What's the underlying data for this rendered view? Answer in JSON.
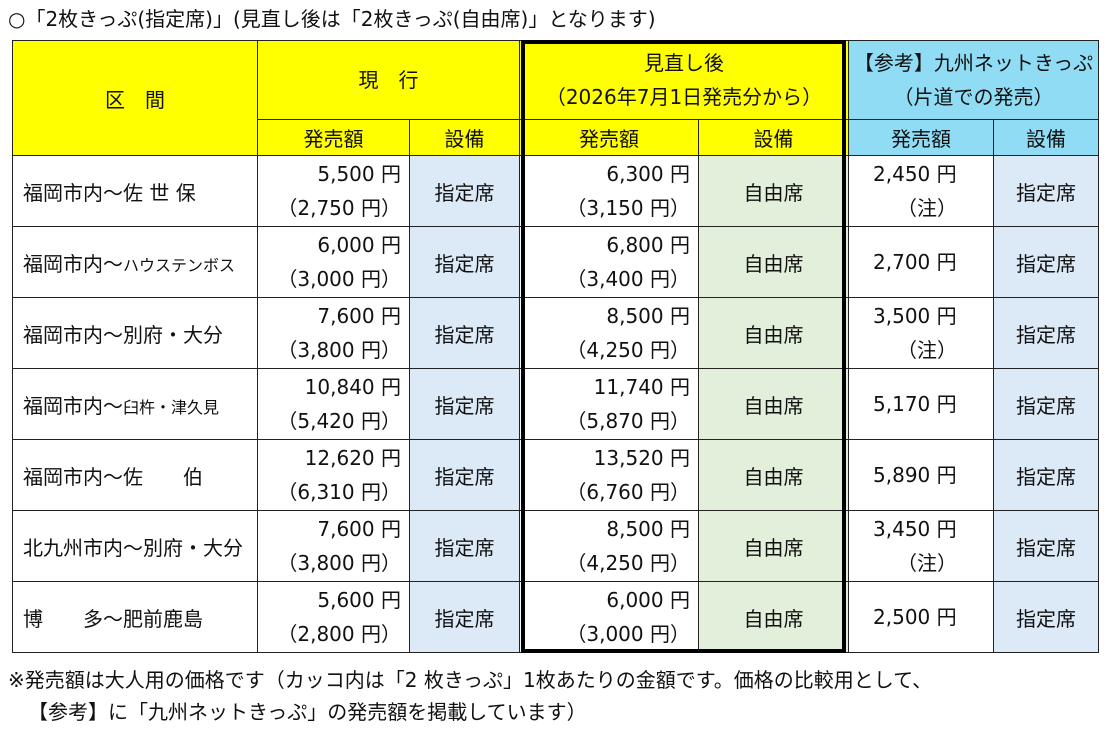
{
  "title": "○「2枚きっぷ(指定席)」(見直し後は「2枚きっぷ(自由席)」となります)",
  "headers": {
    "section": "区　間",
    "current": "現　行",
    "revised_line1": "見直し後",
    "revised_line2": "（2026年7月1日発売分から）",
    "reference_line1": "【参考】九州ネットきっぷ",
    "reference_line2": "（片道での発売）",
    "price": "発売額",
    "equipment": "設備"
  },
  "rows": [
    {
      "section": "福岡市内～佐 世 保",
      "section_small": "",
      "current_price": "5,500 円",
      "current_single": "（2,750 円）",
      "current_seat": "指定席",
      "new_price": "6,300 円",
      "new_single": "（3,150 円）",
      "new_seat": "自由席",
      "net_price": "2,450 円",
      "net_note": "（注）",
      "net_seat": "指定席"
    },
    {
      "section": "福岡市内～",
      "section_small": "ハウステンボス",
      "current_price": "6,000 円",
      "current_single": "（3,000 円）",
      "current_seat": "指定席",
      "new_price": "6,800 円",
      "new_single": "（3,400 円）",
      "new_seat": "自由席",
      "net_price": "2,700 円",
      "net_note": "",
      "net_seat": "指定席"
    },
    {
      "section": "福岡市内～別府・大分",
      "section_small": "",
      "current_price": "7,600 円",
      "current_single": "（3,800 円）",
      "current_seat": "指定席",
      "new_price": "8,500 円",
      "new_single": "（4,250 円）",
      "new_seat": "自由席",
      "net_price": "3,500 円",
      "net_note": "（注）",
      "net_seat": "指定席"
    },
    {
      "section": "福岡市内～",
      "section_small": "臼杵・津久見",
      "current_price": "10,840 円",
      "current_single": "（5,420 円）",
      "current_seat": "指定席",
      "new_price": "11,740 円",
      "new_single": "（5,870 円）",
      "new_seat": "自由席",
      "net_price": "5,170 円",
      "net_note": "",
      "net_seat": "指定席"
    },
    {
      "section": "福岡市内～佐　　伯",
      "section_small": "",
      "current_price": "12,620 円",
      "current_single": "（6,310 円）",
      "current_seat": "指定席",
      "new_price": "13,520 円",
      "new_single": "（6,760 円）",
      "new_seat": "自由席",
      "net_price": "5,890 円",
      "net_note": "",
      "net_seat": "指定席"
    },
    {
      "section": "北九州市内～別府・大分",
      "section_small": "",
      "current_price": "7,600 円",
      "current_single": "（3,800 円）",
      "current_seat": "指定席",
      "new_price": "8,500 円",
      "new_single": "（4,250 円）",
      "new_seat": "自由席",
      "net_price": "3,450 円",
      "net_note": "（注）",
      "net_seat": "指定席"
    },
    {
      "section": "博　　多～肥前鹿島",
      "section_small": "",
      "current_price": "5,600 円",
      "current_single": "（2,800 円）",
      "current_seat": "指定席",
      "new_price": "6,000 円",
      "new_single": "（3,000 円）",
      "new_seat": "自由席",
      "net_price": "2,500 円",
      "net_note": "",
      "net_seat": "指定席"
    }
  ],
  "note_line1": "※発売額は大人用の価格です（カッコ内は「2 枚きっぷ」1枚あたりの金額です。価格の比較用として、",
  "note_line2": "【参考】に「九州ネットきっぷ」の発売額を掲載しています）",
  "colors": {
    "header_yellow": "#ffff00",
    "header_cyan": "#8fdcf4",
    "seat_blue": "#dce9f7",
    "seat_green": "#e2efda"
  }
}
